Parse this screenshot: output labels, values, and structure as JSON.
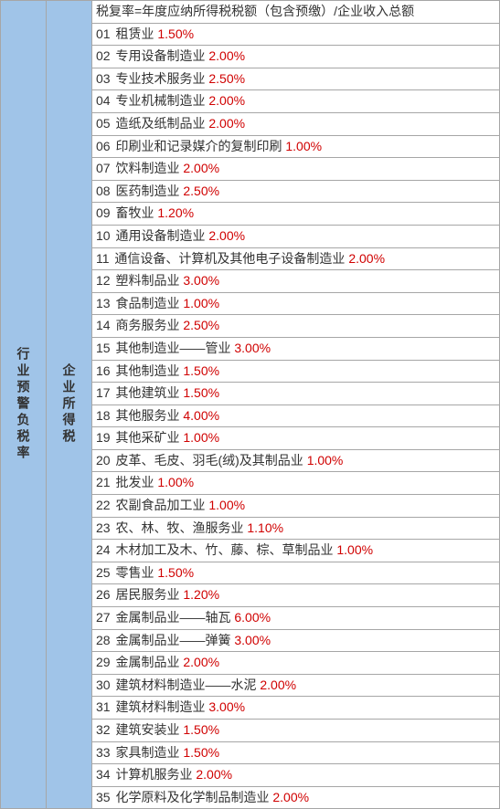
{
  "colors": {
    "headerBg": "#a0c4e8",
    "rate": "#d00000",
    "border": "#a6a6a6",
    "text": "#333"
  },
  "leftHeader": "行业预警负税率",
  "midHeader": "企业所得税",
  "formulaRow": "税复率=年度应纳所得税税额（包含预缴）/企业收入总额",
  "rows": [
    {
      "num": "01",
      "label": "租赁业",
      "rate": "1.50%"
    },
    {
      "num": "02",
      "label": "专用设备制造业",
      "rate": "2.00%"
    },
    {
      "num": "03",
      "label": "专业技术服务业",
      "rate": "2.50%"
    },
    {
      "num": "04",
      "label": "专业机械制造业",
      "rate": "2.00%"
    },
    {
      "num": "05",
      "label": "造纸及纸制品业",
      "rate": "2.00%"
    },
    {
      "num": "06",
      "label": "印刷业和记录媒介的复制印刷",
      "rate": "1.00%"
    },
    {
      "num": "07",
      "label": "饮料制造业",
      "rate": "2.00%"
    },
    {
      "num": "08",
      "label": "医药制造业",
      "rate": "2.50%"
    },
    {
      "num": "09",
      "label": "畜牧业",
      "rate": "1.20%"
    },
    {
      "num": "10",
      "label": "通用设备制造业",
      "rate": "2.00%"
    },
    {
      "num": "11",
      "label": "通信设备、计算机及其他电子设备制造业",
      "rate": "2.00%"
    },
    {
      "num": "12",
      "label": "塑料制品业",
      "rate": "3.00%"
    },
    {
      "num": "13",
      "label": "食品制造业",
      "rate": "1.00%"
    },
    {
      "num": "14",
      "label": "商务服务业",
      "rate": "2.50%"
    },
    {
      "num": "15",
      "label": "其他制造业——管业",
      "rate": "3.00%"
    },
    {
      "num": "16",
      "label": "其他制造业",
      "rate": "1.50%"
    },
    {
      "num": "17",
      "label": "其他建筑业",
      "rate": "1.50%"
    },
    {
      "num": "18",
      "label": "其他服务业",
      "rate": "4.00%"
    },
    {
      "num": "19",
      "label": "其他采矿业",
      "rate": "1.00%"
    },
    {
      "num": "20",
      "label": "皮革、毛皮、羽毛(绒)及其制品业",
      "rate": "1.00%"
    },
    {
      "num": "21",
      "label": "批发业",
      "rate": "1.00%"
    },
    {
      "num": "22",
      "label": "农副食品加工业",
      "rate": "1.00%"
    },
    {
      "num": "23",
      "label": "农、林、牧、渔服务业",
      "rate": "1.10%"
    },
    {
      "num": "24",
      "label": "木材加工及木、竹、藤、棕、草制品业",
      "rate": "1.00%"
    },
    {
      "num": "25",
      "label": "零售业",
      "rate": "1.50%"
    },
    {
      "num": "26",
      "label": "居民服务业",
      "rate": "1.20%"
    },
    {
      "num": "27",
      "label": "金属制品业——轴瓦",
      "rate": "6.00%"
    },
    {
      "num": "28",
      "label": "金属制品业——弹簧",
      "rate": "3.00%"
    },
    {
      "num": "29",
      "label": "金属制品业",
      "rate": "2.00%"
    },
    {
      "num": "30",
      "label": "建筑材料制造业——水泥",
      "rate": "2.00%"
    },
    {
      "num": "31",
      "label": "建筑材料制造业",
      "rate": "3.00%"
    },
    {
      "num": "32",
      "label": "建筑安装业",
      "rate": "1.50%"
    },
    {
      "num": "33",
      "label": "家具制造业",
      "rate": "1.50%"
    },
    {
      "num": "34",
      "label": "计算机服务业",
      "rate": "2.00%"
    },
    {
      "num": "35",
      "label": "化学原料及化学制品制造业",
      "rate": "2.00%"
    }
  ]
}
